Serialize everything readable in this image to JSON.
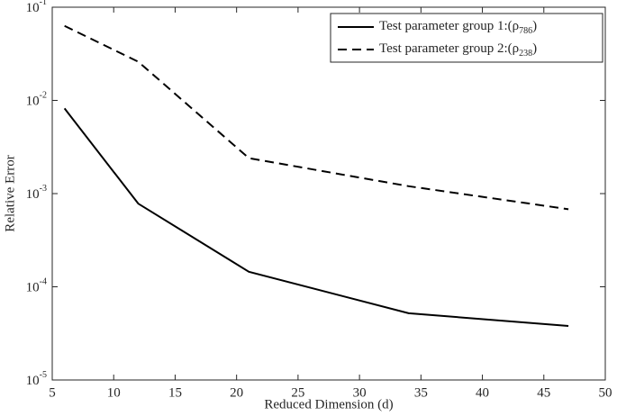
{
  "chart_data": {
    "type": "line",
    "xlabel": "Reduced Dimension (d)",
    "ylabel": "Relative Error",
    "x": [
      6,
      12,
      21,
      34,
      47
    ],
    "series": [
      {
        "name": "Test parameter group 1:(ρ_786)",
        "color": "#000000",
        "linestyle": "solid",
        "values": [
          0.0082,
          0.00078,
          0.000145,
          5.2e-05,
          3.8e-05
        ]
      },
      {
        "name": "Test parameter group 2:(ρ_238)",
        "color": "#000000",
        "linestyle": "dashed",
        "values": [
          0.063,
          0.026,
          0.0024,
          0.0012,
          0.00068
        ]
      }
    ],
    "xlim": [
      5,
      50
    ],
    "xticks": [
      5,
      10,
      15,
      20,
      25,
      30,
      35,
      40,
      45,
      50
    ],
    "ylim": [
      1e-05,
      0.1
    ],
    "yscale": "log",
    "yticks": [
      {
        "value": 1e-05,
        "label": "10^-5"
      },
      {
        "value": 0.0001,
        "label": "10^-4"
      },
      {
        "value": 0.001,
        "label": "10^-3"
      },
      {
        "value": 0.01,
        "label": "10^-2"
      },
      {
        "value": 0.1,
        "label": "10^-1"
      }
    ],
    "legend": "upper right"
  }
}
